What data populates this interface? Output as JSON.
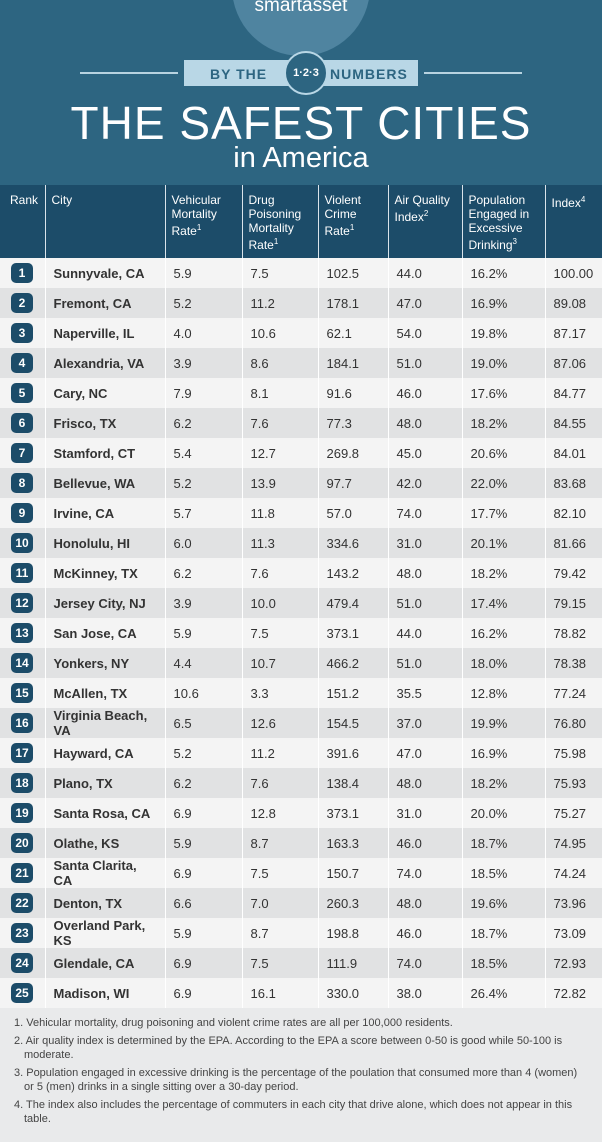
{
  "header": {
    "logo": "smartasset",
    "banner": [
      "BY THE",
      "1·2·3",
      "NUMBERS"
    ],
    "title": "THE SAFEST CITIES",
    "subtitle": "in America"
  },
  "table": {
    "columns": [
      {
        "label": "Rank"
      },
      {
        "label": "City"
      },
      {
        "label": "Vehicular Mortality Rate",
        "note": "1"
      },
      {
        "label": "Drug Poisoning Mortality Rate",
        "note": "1"
      },
      {
        "label": "Violent Crime Rate",
        "note": "1"
      },
      {
        "label": "Air Quality Index",
        "note": "2"
      },
      {
        "label": "Population Engaged in Excessive Drinking",
        "note": "3"
      },
      {
        "label": "Index",
        "note": "4"
      }
    ],
    "rows": [
      [
        "1",
        "Sunnyvale, CA",
        "5.9",
        "7.5",
        "102.5",
        "44.0",
        "16.2%",
        "100.00"
      ],
      [
        "2",
        "Fremont, CA",
        "5.2",
        "11.2",
        "178.1",
        "47.0",
        "16.9%",
        "89.08"
      ],
      [
        "3",
        "Naperville, IL",
        "4.0",
        "10.6",
        "62.1",
        "54.0",
        "19.8%",
        "87.17"
      ],
      [
        "4",
        "Alexandria, VA",
        "3.9",
        "8.6",
        "184.1",
        "51.0",
        "19.0%",
        "87.06"
      ],
      [
        "5",
        "Cary, NC",
        "7.9",
        "8.1",
        "91.6",
        "46.0",
        "17.6%",
        "84.77"
      ],
      [
        "6",
        "Frisco, TX",
        "6.2",
        "7.6",
        "77.3",
        "48.0",
        "18.2%",
        "84.55"
      ],
      [
        "7",
        "Stamford, CT",
        "5.4",
        "12.7",
        "269.8",
        "45.0",
        "20.6%",
        "84.01"
      ],
      [
        "8",
        "Bellevue, WA",
        "5.2",
        "13.9",
        "97.7",
        "42.0",
        "22.0%",
        "83.68"
      ],
      [
        "9",
        "Irvine, CA",
        "5.7",
        "11.8",
        "57.0",
        "74.0",
        "17.7%",
        "82.10"
      ],
      [
        "10",
        "Honolulu, HI",
        "6.0",
        "11.3",
        "334.6",
        "31.0",
        "20.1%",
        "81.66"
      ],
      [
        "11",
        "McKinney, TX",
        "6.2",
        "7.6",
        "143.2",
        "48.0",
        "18.2%",
        "79.42"
      ],
      [
        "12",
        "Jersey City, NJ",
        "3.9",
        "10.0",
        "479.4",
        "51.0",
        "17.4%",
        "79.15"
      ],
      [
        "13",
        "San Jose, CA",
        "5.9",
        "7.5",
        "373.1",
        "44.0",
        "16.2%",
        "78.82"
      ],
      [
        "14",
        "Yonkers, NY",
        "4.4",
        "10.7",
        "466.2",
        "51.0",
        "18.0%",
        "78.38"
      ],
      [
        "15",
        "McAllen, TX",
        "10.6",
        "3.3",
        "151.2",
        "35.5",
        "12.8%",
        "77.24"
      ],
      [
        "16",
        "Virginia Beach, VA",
        "6.5",
        "12.6",
        "154.5",
        "37.0",
        "19.9%",
        "76.80"
      ],
      [
        "17",
        "Hayward, CA",
        "5.2",
        "11.2",
        "391.6",
        "47.0",
        "16.9%",
        "75.98"
      ],
      [
        "18",
        "Plano, TX",
        "6.2",
        "7.6",
        "138.4",
        "48.0",
        "18.2%",
        "75.93"
      ],
      [
        "19",
        "Santa Rosa, CA",
        "6.9",
        "12.8",
        "373.1",
        "31.0",
        "20.0%",
        "75.27"
      ],
      [
        "20",
        "Olathe, KS",
        "5.9",
        "8.7",
        "163.3",
        "46.0",
        "18.7%",
        "74.95"
      ],
      [
        "21",
        "Santa Clarita, CA",
        "6.9",
        "7.5",
        "150.7",
        "74.0",
        "18.5%",
        "74.24"
      ],
      [
        "22",
        "Denton, TX",
        "6.6",
        "7.0",
        "260.3",
        "48.0",
        "19.6%",
        "73.96"
      ],
      [
        "23",
        "Overland Park, KS",
        "5.9",
        "8.7",
        "198.8",
        "46.0",
        "18.7%",
        "73.09"
      ],
      [
        "24",
        "Glendale, CA",
        "6.9",
        "7.5",
        "111.9",
        "74.0",
        "18.5%",
        "72.93"
      ],
      [
        "25",
        "Madison, WI",
        "6.9",
        "16.1",
        "330.0",
        "38.0",
        "26.4%",
        "72.82"
      ]
    ]
  },
  "footnotes": [
    "1. Vehicular mortality, drug poisoning and violent crime rates are all per 100,000 residents.",
    "2. Air quality index is determined by the EPA. According to the EPA a score between 0-50 is good while 50-100 is moderate.",
    "3. Population engaged in excessive drinking is the percentage of the poulation that consumed more than 4 (women) or 5 (men) drinks in a single sitting over a 30-day period.",
    "4. The index also includes the percentage of commuters in each city that drive alone, which does not appear in this table."
  ]
}
